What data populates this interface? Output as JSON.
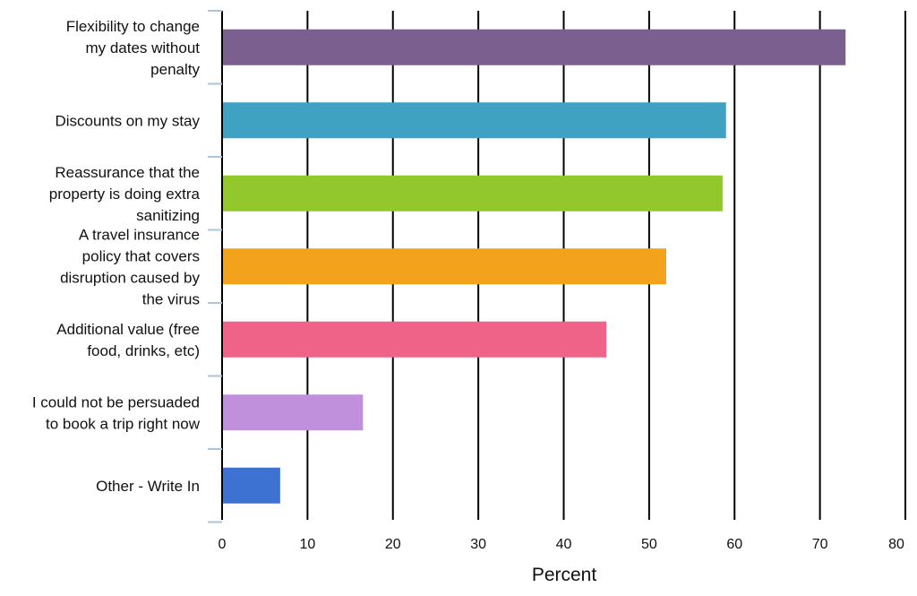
{
  "chart_data": {
    "type": "bar",
    "orientation": "horizontal",
    "categories": [
      [
        "Flexibility to change",
        "my dates without",
        "penalty"
      ],
      [
        "Discounts on my stay"
      ],
      [
        "Reassurance that the",
        "property is doing extra",
        "sanitizing"
      ],
      [
        "A travel insurance",
        "policy that covers",
        "disruption caused by",
        "the virus"
      ],
      [
        "Additional value (free",
        "food, drinks, etc)"
      ],
      [
        "I could not be persuaded",
        "to book a trip right now"
      ],
      [
        "Other - Write In"
      ]
    ],
    "values": [
      73,
      59,
      58.6,
      52,
      45,
      16.5,
      6.8
    ],
    "colors": [
      "#7b5f8f",
      "#3fa2c3",
      "#92c82b",
      "#f2a31b",
      "#ee6387",
      "#c090dc",
      "#3e72d2"
    ],
    "xlabel": "Percent",
    "ylabel": "",
    "xlim": [
      0,
      80
    ],
    "ticks": [
      "0",
      "10",
      "20",
      "30",
      "40",
      "50",
      "60",
      "70",
      "80"
    ],
    "grid": true
  }
}
